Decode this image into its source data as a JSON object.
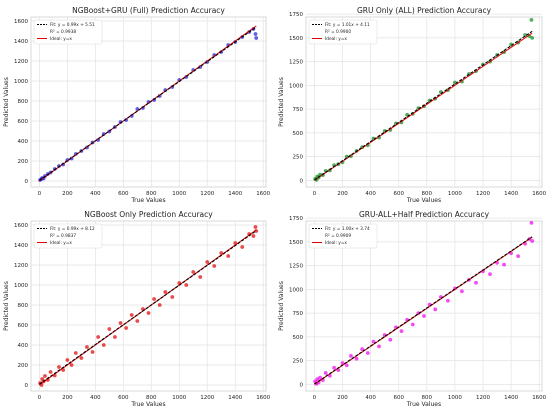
{
  "chart_data": [
    {
      "type": "scatter",
      "title": "NGBoost+GRU (Full) Prediction Accuracy",
      "xlabel": "True Values",
      "ylabel": "Predicted Values",
      "xlim": [
        -60,
        1620
      ],
      "ylim": [
        -60,
        1640
      ],
      "xticks": [
        0,
        200,
        400,
        600,
        800,
        1000,
        1200,
        1400,
        1600
      ],
      "yticks": [
        0,
        200,
        400,
        600,
        800,
        1000,
        1200,
        1400,
        1600
      ],
      "grid": true,
      "legend_position": "top-left",
      "legend": [
        {
          "label": "Fit: y = 0.99x + 5.51",
          "style": "dashed",
          "color": "#000000"
        },
        {
          "label": "R² = 0.9938",
          "style": "none",
          "color": ""
        },
        {
          "label": "Ideal: y=x",
          "style": "solid",
          "color": "#e00000"
        }
      ],
      "fit": {
        "slope": 0.99,
        "intercept": 5.51,
        "r2": 0.9938
      },
      "point_color": "#1a1adb",
      "x": [
        5,
        15,
        20,
        30,
        40,
        60,
        80,
        110,
        140,
        170,
        200,
        230,
        260,
        300,
        340,
        380,
        420,
        460,
        500,
        540,
        580,
        620,
        660,
        700,
        740,
        780,
        820,
        860,
        900,
        950,
        1000,
        1050,
        1100,
        1150,
        1200,
        1250,
        1300,
        1350,
        1400,
        1450,
        1500,
        1530,
        1545,
        1550
      ],
      "y": [
        10,
        20,
        30,
        25,
        50,
        70,
        85,
        120,
        150,
        165,
        210,
        225,
        270,
        300,
        335,
        385,
        410,
        470,
        495,
        540,
        590,
        610,
        650,
        720,
        730,
        790,
        810,
        850,
        910,
        940,
        1010,
        1040,
        1110,
        1140,
        1190,
        1260,
        1290,
        1360,
        1390,
        1440,
        1490,
        1520,
        1470,
        1430
      ]
    },
    {
      "type": "scatter",
      "title": "GRU Only (ALL) Prediction Accuracy",
      "xlabel": "True Values",
      "ylabel": "Predicted Values",
      "xlim": [
        -60,
        1620
      ],
      "ylim": [
        -70,
        1720
      ],
      "xticks": [
        0,
        200,
        400,
        600,
        800,
        1000,
        1200,
        1400,
        1600
      ],
      "yticks": [
        0,
        250,
        500,
        750,
        1000,
        1250,
        1500,
        1750
      ],
      "grid": true,
      "legend_position": "top-left",
      "legend": [
        {
          "label": "Fit: y = 1.01x + 4.11",
          "style": "dashed",
          "color": "#000000"
        },
        {
          "label": "R² = 0.9900",
          "style": "none",
          "color": ""
        },
        {
          "label": "Ideal: y=x",
          "style": "solid",
          "color": "#e00000"
        }
      ],
      "fit": {
        "slope": 1.01,
        "intercept": 4.11,
        "r2": 0.99
      },
      "point_color": "#0a8a1a",
      "x": [
        5,
        15,
        20,
        30,
        40,
        60,
        80,
        110,
        140,
        170,
        200,
        230,
        260,
        300,
        340,
        380,
        420,
        460,
        500,
        540,
        580,
        620,
        660,
        700,
        740,
        780,
        820,
        860,
        900,
        950,
        1000,
        1050,
        1100,
        1150,
        1200,
        1250,
        1300,
        1350,
        1400,
        1450,
        1500,
        1530,
        1545,
        1550
      ],
      "y": [
        15,
        5,
        40,
        30,
        60,
        55,
        100,
        105,
        160,
        170,
        190,
        250,
        255,
        310,
        350,
        370,
        440,
        450,
        520,
        530,
        600,
        610,
        690,
        700,
        760,
        780,
        840,
        860,
        930,
        950,
        1030,
        1040,
        1120,
        1150,
        1220,
        1250,
        1320,
        1350,
        1430,
        1450,
        1530,
        1520,
        1690,
        1500
      ]
    },
    {
      "type": "scatter",
      "title": "NGBoost Only Prediction Accuracy",
      "xlabel": "True Values",
      "ylabel": "Predicted Values",
      "xlim": [
        -60,
        1620
      ],
      "ylim": [
        -60,
        1640
      ],
      "xticks": [
        0,
        200,
        400,
        600,
        800,
        1000,
        1200,
        1400,
        1600
      ],
      "yticks": [
        0,
        200,
        400,
        600,
        800,
        1000,
        1200,
        1400,
        1600
      ],
      "grid": true,
      "legend_position": "top-left",
      "legend": [
        {
          "label": "Fit: y = 0.99x + 8.12",
          "style": "dashed",
          "color": "#000000"
        },
        {
          "label": "R² = 0.9837",
          "style": "none",
          "color": ""
        },
        {
          "label": "Ideal: y=x",
          "style": "solid",
          "color": "#e00000"
        }
      ],
      "fit": {
        "slope": 0.99,
        "intercept": 8.12,
        "r2": 0.9837
      },
      "point_color": "#e00000",
      "x": [
        5,
        15,
        20,
        30,
        40,
        60,
        80,
        110,
        140,
        170,
        200,
        230,
        260,
        300,
        340,
        380,
        420,
        460,
        500,
        540,
        580,
        620,
        660,
        700,
        740,
        780,
        820,
        860,
        900,
        950,
        1000,
        1050,
        1100,
        1150,
        1200,
        1250,
        1300,
        1350,
        1400,
        1450,
        1500,
        1530,
        1545,
        1550
      ],
      "y": [
        20,
        0,
        60,
        35,
        90,
        50,
        130,
        95,
        180,
        150,
        250,
        200,
        320,
        270,
        380,
        330,
        480,
        400,
        560,
        480,
        620,
        570,
        700,
        640,
        760,
        720,
        860,
        800,
        930,
        880,
        1020,
        1000,
        1130,
        1080,
        1230,
        1190,
        1320,
        1290,
        1420,
        1380,
        1510,
        1490,
        1580,
        1540
      ]
    },
    {
      "type": "scatter",
      "title": "GRU-ALL+Half Prediction Accuracy",
      "xlabel": "True Values",
      "ylabel": "Predicted Values",
      "xlim": [
        -60,
        1620
      ],
      "ylim": [
        -70,
        1720
      ],
      "xticks": [
        0,
        200,
        400,
        600,
        800,
        1000,
        1200,
        1400,
        1600
      ],
      "yticks": [
        0,
        250,
        500,
        750,
        1000,
        1250,
        1500,
        1750
      ],
      "grid": true,
      "legend_position": "top-left",
      "legend": [
        {
          "label": "Fit: y = 1.00x + 3.74",
          "style": "dashed",
          "color": "#000000"
        },
        {
          "label": "R² = 0.9909",
          "style": "none",
          "color": ""
        },
        {
          "label": "Ideal: y=x",
          "style": "solid",
          "color": "#e00000"
        }
      ],
      "fit": {
        "slope": 1.0,
        "intercept": 3.74,
        "r2": 0.9909
      },
      "point_color": "#ee00ee",
      "x": [
        5,
        15,
        20,
        30,
        40,
        60,
        80,
        110,
        140,
        170,
        200,
        230,
        260,
        300,
        340,
        380,
        420,
        460,
        500,
        540,
        580,
        620,
        660,
        700,
        740,
        780,
        820,
        860,
        900,
        950,
        1000,
        1050,
        1100,
        1150,
        1200,
        1250,
        1300,
        1350,
        1400,
        1450,
        1500,
        1530,
        1545,
        1550
      ],
      "y": [
        30,
        5,
        55,
        20,
        70,
        45,
        120,
        90,
        175,
        150,
        225,
        200,
        300,
        270,
        370,
        330,
        450,
        400,
        520,
        470,
        600,
        560,
        680,
        630,
        750,
        720,
        840,
        790,
        920,
        880,
        1010,
        980,
        1100,
        1070,
        1190,
        1160,
        1280,
        1260,
        1380,
        1350,
        1480,
        1530,
        1700,
        1510
      ]
    }
  ]
}
